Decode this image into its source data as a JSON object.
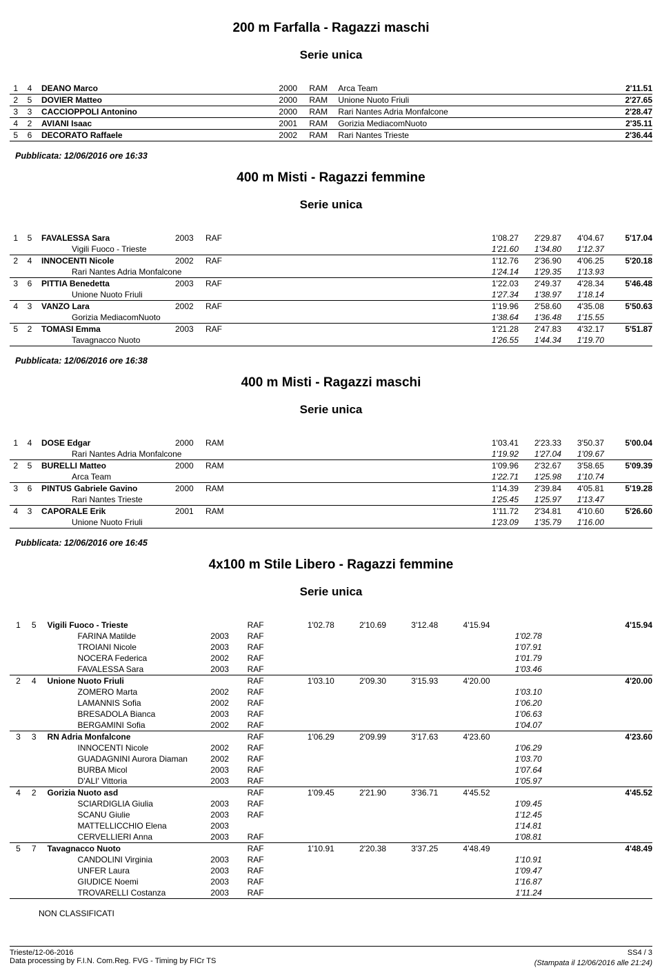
{
  "footer": {
    "left1": "Trieste/12-06-2016",
    "left2": "Data processing by F.I.N. Com.Reg. FVG - Timing by FICr TS",
    "right1": "SS4 / 3",
    "right2": "(Stampata il 12/06/2016 alle 21:24)"
  },
  "non_classificati": "NON  CLASSIFICATI",
  "events": [
    {
      "title": "200 m Farfalla - Ragazzi maschi",
      "series": "Serie unica",
      "pub": "Pubblicata: 12/06/2016 ore 16:33",
      "type": "simple",
      "rows": [
        {
          "rank": "1",
          "lane": "4",
          "name": "DEANO Marco",
          "year": "2000",
          "cat": "RAM",
          "team": "Arca Team",
          "final": "2'11.51"
        },
        {
          "rank": "2",
          "lane": "5",
          "name": "DOVIER Matteo",
          "year": "2000",
          "cat": "RAM",
          "team": "Unione Nuoto Friuli",
          "final": "2'27.65"
        },
        {
          "rank": "3",
          "lane": "3",
          "name": "CACCIOPPOLI Antonino",
          "year": "2000",
          "cat": "RAM",
          "team": "Rari Nantes Adria Monfalcone",
          "final": "2'28.47"
        },
        {
          "rank": "4",
          "lane": "2",
          "name": "AVIANI Isaac",
          "year": "2001",
          "cat": "RAM",
          "team": "Gorizia MediacomNuoto",
          "final": "2'35.11"
        },
        {
          "rank": "5",
          "lane": "6",
          "name": "DECORATO Raffaele",
          "year": "2002",
          "cat": "RAM",
          "team": "Rari Nantes Trieste",
          "final": "2'36.44"
        }
      ]
    },
    {
      "title": "400 m Misti - Ragazzi femmine",
      "series": "Serie unica",
      "pub": "Pubblicata: 12/06/2016 ore 16:38",
      "type": "splits4",
      "rows": [
        {
          "rank": "1",
          "lane": "5",
          "name": "FAVALESSA Sara",
          "year": "2003",
          "cat": "RAF",
          "team": "Vigili Fuoco - Trieste",
          "s": [
            "1'08.27",
            "2'29.87",
            "4'04.67"
          ],
          "final": "5'17.04",
          "sub": [
            "1'21.60",
            "1'34.80",
            "1'12.37"
          ]
        },
        {
          "rank": "2",
          "lane": "4",
          "name": "INNOCENTI Nicole",
          "year": "2002",
          "cat": "RAF",
          "team": "Rari Nantes Adria Monfalcone",
          "s": [
            "1'12.76",
            "2'36.90",
            "4'06.25"
          ],
          "final": "5'20.18",
          "sub": [
            "1'24.14",
            "1'29.35",
            "1'13.93"
          ]
        },
        {
          "rank": "3",
          "lane": "6",
          "name": "PITTIA Benedetta",
          "year": "2003",
          "cat": "RAF",
          "team": "Unione Nuoto Friuli",
          "s": [
            "1'22.03",
            "2'49.37",
            "4'28.34"
          ],
          "final": "5'46.48",
          "sub": [
            "1'27.34",
            "1'38.97",
            "1'18.14"
          ]
        },
        {
          "rank": "4",
          "lane": "3",
          "name": "VANZO Lara",
          "year": "2002",
          "cat": "RAF",
          "team": "Gorizia MediacomNuoto",
          "s": [
            "1'19.96",
            "2'58.60",
            "4'35.08"
          ],
          "final": "5'50.63",
          "sub": [
            "1'38.64",
            "1'36.48",
            "1'15.55"
          ]
        },
        {
          "rank": "5",
          "lane": "2",
          "name": "TOMASI Emma",
          "year": "2003",
          "cat": "RAF",
          "team": "Tavagnacco Nuoto",
          "s": [
            "1'21.28",
            "2'47.83",
            "4'32.17"
          ],
          "final": "5'51.87",
          "sub": [
            "1'26.55",
            "1'44.34",
            "1'19.70"
          ]
        }
      ]
    },
    {
      "title": "400 m Misti - Ragazzi maschi",
      "series": "Serie unica",
      "pub": "Pubblicata: 12/06/2016 ore 16:45",
      "type": "splits4",
      "rows": [
        {
          "rank": "1",
          "lane": "4",
          "name": "DOSE Edgar",
          "year": "2000",
          "cat": "RAM",
          "team": "Rari Nantes Adria Monfalcone",
          "s": [
            "1'03.41",
            "2'23.33",
            "3'50.37"
          ],
          "final": "5'00.04",
          "sub": [
            "1'19.92",
            "1'27.04",
            "1'09.67"
          ]
        },
        {
          "rank": "2",
          "lane": "5",
          "name": "BURELLI Matteo",
          "year": "2000",
          "cat": "RAM",
          "team": "Arca Team",
          "s": [
            "1'09.96",
            "2'32.67",
            "3'58.65"
          ],
          "final": "5'09.39",
          "sub": [
            "1'22.71",
            "1'25.98",
            "1'10.74"
          ]
        },
        {
          "rank": "3",
          "lane": "6",
          "name": "PINTUS Gabriele Gavino",
          "year": "2000",
          "cat": "RAM",
          "team": "Rari Nantes Trieste",
          "s": [
            "1'14.39",
            "2'39.84",
            "4'05.81"
          ],
          "final": "5'19.28",
          "sub": [
            "1'25.45",
            "1'25.97",
            "1'13.47"
          ]
        },
        {
          "rank": "4",
          "lane": "3",
          "name": "CAPORALE Erik",
          "year": "2001",
          "cat": "RAM",
          "team": "Unione Nuoto Friuli",
          "s": [
            "1'11.72",
            "2'34.81",
            "4'10.60"
          ],
          "final": "5'26.60",
          "sub": [
            "1'23.09",
            "1'35.79",
            "1'16.00"
          ]
        }
      ]
    },
    {
      "title": "4x100 m Stile Libero - Ragazzi femmine",
      "series": "Serie unica",
      "pub": "",
      "type": "relay",
      "rows": [
        {
          "rank": "1",
          "lane": "5",
          "team": "Vigili Fuoco - Trieste",
          "cat": "RAF",
          "s": [
            "1'02.78",
            "2'10.69",
            "3'12.48",
            "4'15.94"
          ],
          "final": "4'15.94",
          "members": [
            {
              "name": "FARINA Matilde",
              "year": "2003",
              "cat": "RAF",
              "t": "1'02.78"
            },
            {
              "name": "TROIANI Nicole",
              "year": "2003",
              "cat": "RAF",
              "t": "1'07.91"
            },
            {
              "name": "NOCERA Federica",
              "year": "2002",
              "cat": "RAF",
              "t": "1'01.79"
            },
            {
              "name": "FAVALESSA Sara",
              "year": "2003",
              "cat": "RAF",
              "t": "1'03.46"
            }
          ]
        },
        {
          "rank": "2",
          "lane": "4",
          "team": "Unione Nuoto Friuli",
          "cat": "RAF",
          "s": [
            "1'03.10",
            "2'09.30",
            "3'15.93",
            "4'20.00"
          ],
          "final": "4'20.00",
          "members": [
            {
              "name": "ZOMERO Marta",
              "year": "2002",
              "cat": "RAF",
              "t": "1'03.10"
            },
            {
              "name": "LAMANNIS Sofia",
              "year": "2002",
              "cat": "RAF",
              "t": "1'06.20"
            },
            {
              "name": "BRESADOLA Bianca",
              "year": "2003",
              "cat": "RAF",
              "t": "1'06.63"
            },
            {
              "name": "BERGAMINI Sofia",
              "year": "2002",
              "cat": "RAF",
              "t": "1'04.07"
            }
          ]
        },
        {
          "rank": "3",
          "lane": "3",
          "team": "RN Adria Monfalcone",
          "cat": "RAF",
          "s": [
            "1'06.29",
            "2'09.99",
            "3'17.63",
            "4'23.60"
          ],
          "final": "4'23.60",
          "members": [
            {
              "name": "INNOCENTI Nicole",
              "year": "2002",
              "cat": "RAF",
              "t": "1'06.29"
            },
            {
              "name": "GUADAGNINI Aurora Diaman",
              "year": "2002",
              "cat": "RAF",
              "t": "1'03.70"
            },
            {
              "name": "BURBA Micol",
              "year": "2003",
              "cat": "RAF",
              "t": "1'07.64"
            },
            {
              "name": "D'ALI' Vittoria",
              "year": "2003",
              "cat": "RAF",
              "t": "1'05.97"
            }
          ]
        },
        {
          "rank": "4",
          "lane": "2",
          "team": "Gorizia Nuoto asd",
          "cat": "RAF",
          "s": [
            "1'09.45",
            "2'21.90",
            "3'36.71",
            "4'45.52"
          ],
          "final": "4'45.52",
          "members": [
            {
              "name": "SCIARDIGLIA Giulia",
              "year": "2003",
              "cat": "RAF",
              "t": "1'09.45"
            },
            {
              "name": "SCANU Giulie",
              "year": "2003",
              "cat": "RAF",
              "t": "1'12.45"
            },
            {
              "name": "MATTELLICCHIO Elena",
              "year": "2003",
              "cat": "",
              "t": "1'14.81"
            },
            {
              "name": "CERVELLIERI Anna",
              "year": "2003",
              "cat": "RAF",
              "t": "1'08.81"
            }
          ]
        },
        {
          "rank": "5",
          "lane": "7",
          "team": "Tavagnacco Nuoto",
          "cat": "RAF",
          "s": [
            "1'10.91",
            "2'20.38",
            "3'37.25",
            "4'48.49"
          ],
          "final": "4'48.49",
          "members": [
            {
              "name": "CANDOLINI Virginia",
              "year": "2003",
              "cat": "RAF",
              "t": "1'10.91"
            },
            {
              "name": "UNFER Laura",
              "year": "2003",
              "cat": "RAF",
              "t": "1'09.47"
            },
            {
              "name": "GIUDICE Noemi",
              "year": "2003",
              "cat": "RAF",
              "t": "1'16.87"
            },
            {
              "name": "TROVARELLI Costanza",
              "year": "2003",
              "cat": "RAF",
              "t": "1'11.24"
            }
          ]
        }
      ]
    }
  ]
}
